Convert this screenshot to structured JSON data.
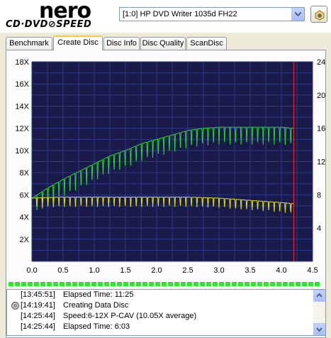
{
  "app": {
    "logo_top": "nero",
    "logo_bottom": "CD·DVD⊘SPEED"
  },
  "drive": {
    "selected": "[1:0]  HP DVD Writer 1035d FH22"
  },
  "tabs": [
    {
      "label": "Benchmark",
      "active": false
    },
    {
      "label": "Create Disc",
      "active": true
    },
    {
      "label": "Disc Info",
      "active": false
    },
    {
      "label": "Disc Quality",
      "active": false
    },
    {
      "label": "ScanDisc",
      "active": false
    }
  ],
  "chart_data": {
    "type": "line",
    "x_ticks": [
      "0.0",
      "0.5",
      "1.0",
      "1.5",
      "2.0",
      "2.5",
      "3.0",
      "3.5",
      "4.0",
      "4.5"
    ],
    "y_left_ticks": [
      "2X",
      "4X",
      "6X",
      "8X",
      "10X",
      "12X",
      "14X",
      "16X",
      "18X"
    ],
    "y_right_ticks": [
      "4",
      "8",
      "12",
      "16",
      "20",
      "24"
    ],
    "xlim": [
      0,
      4.5
    ],
    "ylim_left": [
      0,
      18
    ],
    "ylim_right": [
      0,
      24
    ],
    "grid": true,
    "series": [
      {
        "color": "#22dd22",
        "x": [
          0.0,
          0.25,
          0.5,
          0.75,
          1.0,
          1.25,
          1.5,
          1.75,
          2.0,
          2.25,
          2.5,
          2.75,
          3.0,
          3.25,
          3.5,
          3.75,
          4.0,
          4.2
        ],
        "values": [
          5.7,
          6.6,
          7.4,
          8.1,
          8.8,
          9.5,
          10.0,
          10.6,
          11.0,
          11.4,
          11.8,
          12.0,
          12.1,
          12.1,
          12.1,
          12.1,
          12.1,
          12.0
        ]
      },
      {
        "color": "#e6e600",
        "x": [
          0.0,
          0.5,
          1.0,
          1.5,
          2.0,
          2.5,
          3.0,
          3.5,
          4.0,
          4.2
        ],
        "values": [
          5.7,
          5.8,
          5.8,
          5.8,
          5.8,
          5.8,
          5.7,
          5.5,
          5.3,
          5.2
        ]
      }
    ],
    "marker_x": 4.2
  },
  "log": [
    {
      "time": "[13:45:51]",
      "message": "Elapsed Time: 11:25",
      "icon": ""
    },
    {
      "time": "[14:19:41]",
      "message": "Creating Data Disc",
      "icon": "disc-icon"
    },
    {
      "time": "[14:25:44]",
      "message": "Speed:6-12X P-CAV (10.05X average)",
      "icon": ""
    },
    {
      "time": "[14:25:44]",
      "message": "Elapsed Time: 6:03",
      "icon": ""
    }
  ],
  "colors": {
    "plot_bg": "#1a1a4a",
    "grid": "#2a3a8a",
    "marker": "#ff3030",
    "progress": "#22ee22"
  }
}
